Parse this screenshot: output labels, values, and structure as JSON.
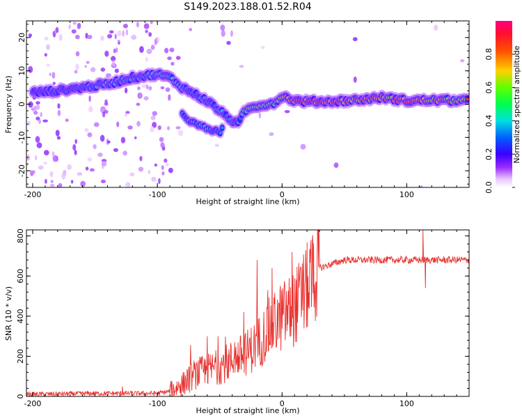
{
  "title": "S149.2023.188.01.52.R04",
  "chart_data": [
    {
      "type": "heatmap",
      "xlabel": "Height of straight line (km)",
      "ylabel": "Frequency (Hz)",
      "xlim": [
        -205,
        150
      ],
      "ylim": [
        -25,
        25
      ],
      "xticks": [
        -200,
        -100,
        0,
        100
      ],
      "yticks": [
        -20,
        -10,
        0,
        10,
        20
      ],
      "colorbar": {
        "label": "Normalized spectral amplitude",
        "range": [
          0,
          1
        ],
        "ticks": [
          "0.0",
          "0.2",
          "0.4",
          "0.6",
          "0.8"
        ],
        "colors": [
          "#ffffff",
          "#e8c8ff",
          "#9a2cff",
          "#3a00ff",
          "#0080ff",
          "#00e8e8",
          "#00ff40",
          "#a0ff00",
          "#ffd000",
          "#ff4000",
          "#ff0060"
        ]
      },
      "ridge": [
        {
          "x": -200,
          "y": 3.5,
          "a": 0.2
        },
        {
          "x": -180,
          "y": 4,
          "a": 0.25
        },
        {
          "x": -160,
          "y": 5,
          "a": 0.3
        },
        {
          "x": -140,
          "y": 6,
          "a": 0.35
        },
        {
          "x": -120,
          "y": 8,
          "a": 0.3
        },
        {
          "x": -100,
          "y": 9,
          "a": 0.35
        },
        {
          "x": -90,
          "y": 8,
          "a": 0.4
        },
        {
          "x": -80,
          "y": 5,
          "a": 0.35
        },
        {
          "x": -70,
          "y": 3,
          "a": 0.35
        },
        {
          "x": -60,
          "y": 1,
          "a": 0.35
        },
        {
          "x": -50,
          "y": -2,
          "a": 0.35
        },
        {
          "x": -40,
          "y": -5,
          "a": 0.3
        },
        {
          "x": -35,
          "y": -6,
          "a": 0.35
        },
        {
          "x": -30,
          "y": -2,
          "a": 0.4
        },
        {
          "x": -20,
          "y": -0.5,
          "a": 0.55
        },
        {
          "x": -5,
          "y": 0.5,
          "a": 0.5
        },
        {
          "x": 0,
          "y": 2.5,
          "a": 0.6
        },
        {
          "x": 10,
          "y": 1,
          "a": 0.75
        },
        {
          "x": 20,
          "y": 0.8,
          "a": 0.85
        },
        {
          "x": 40,
          "y": 0.8,
          "a": 0.9
        },
        {
          "x": 60,
          "y": 1.2,
          "a": 0.75
        },
        {
          "x": 80,
          "y": 2,
          "a": 0.7
        },
        {
          "x": 100,
          "y": 1,
          "a": 0.8
        },
        {
          "x": 120,
          "y": 1.2,
          "a": 0.75
        },
        {
          "x": 150,
          "y": 1,
          "a": 0.7
        }
      ],
      "branch": [
        {
          "x": -80,
          "y": -3,
          "a": 0.3
        },
        {
          "x": -70,
          "y": -6,
          "a": 0.35
        },
        {
          "x": -60,
          "y": -7.5,
          "a": 0.35
        },
        {
          "x": -50,
          "y": -8.5,
          "a": 0.3
        },
        {
          "x": -48,
          "y": -7,
          "a": 0.3
        }
      ]
    },
    {
      "type": "line",
      "xlabel": "Height of straight line (km)",
      "ylabel": "SNR (10 * v/v)",
      "xlim": [
        -205,
        150
      ],
      "ylim": [
        0,
        830
      ],
      "xticks": [
        -200,
        -100,
        0,
        100
      ],
      "yticks": [
        0,
        200,
        400,
        600,
        800
      ],
      "color": "#e8312e",
      "trend": [
        {
          "x": -205,
          "y": 10
        },
        {
          "x": -150,
          "y": 15
        },
        {
          "x": -100,
          "y": 15
        },
        {
          "x": -90,
          "y": 25
        },
        {
          "x": -80,
          "y": 60
        },
        {
          "x": -70,
          "y": 110
        },
        {
          "x": -60,
          "y": 130
        },
        {
          "x": -50,
          "y": 150
        },
        {
          "x": -40,
          "y": 180
        },
        {
          "x": -30,
          "y": 210
        },
        {
          "x": -20,
          "y": 260
        },
        {
          "x": -10,
          "y": 340
        },
        {
          "x": 0,
          "y": 400
        },
        {
          "x": 10,
          "y": 440
        },
        {
          "x": 20,
          "y": 540
        },
        {
          "x": 30,
          "y": 640
        },
        {
          "x": 50,
          "y": 680
        },
        {
          "x": 100,
          "y": 680
        },
        {
          "x": 150,
          "y": 680
        }
      ],
      "spikes": [
        {
          "x": -128,
          "y": 50
        },
        {
          "x": -60,
          "y": 300
        },
        {
          "x": -38,
          "y": 270
        },
        {
          "x": -20,
          "y": 680
        },
        {
          "x": -8,
          "y": 640
        },
        {
          "x": 8,
          "y": 720
        },
        {
          "x": 113,
          "y": 830
        },
        {
          "x": 115,
          "y": 540
        }
      ]
    }
  ]
}
